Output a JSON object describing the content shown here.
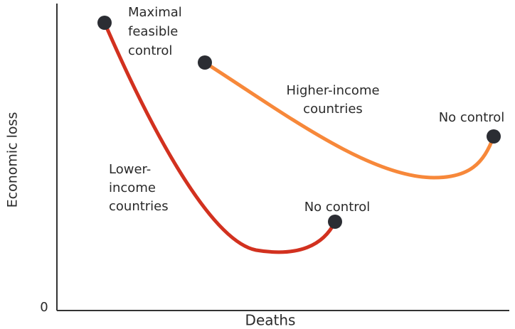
{
  "axes": {
    "y_label": "Economic loss",
    "x_label": "Deaths",
    "origin": "0"
  },
  "curves": [
    {
      "label": [
        "Lower-",
        "income",
        "countries"
      ],
      "start_label": [
        "Maximal",
        "feasible",
        "control"
      ],
      "end_label": "No control"
    },
    {
      "label": [
        "Higher-income",
        "countries"
      ],
      "end_label": "No control"
    }
  ]
}
